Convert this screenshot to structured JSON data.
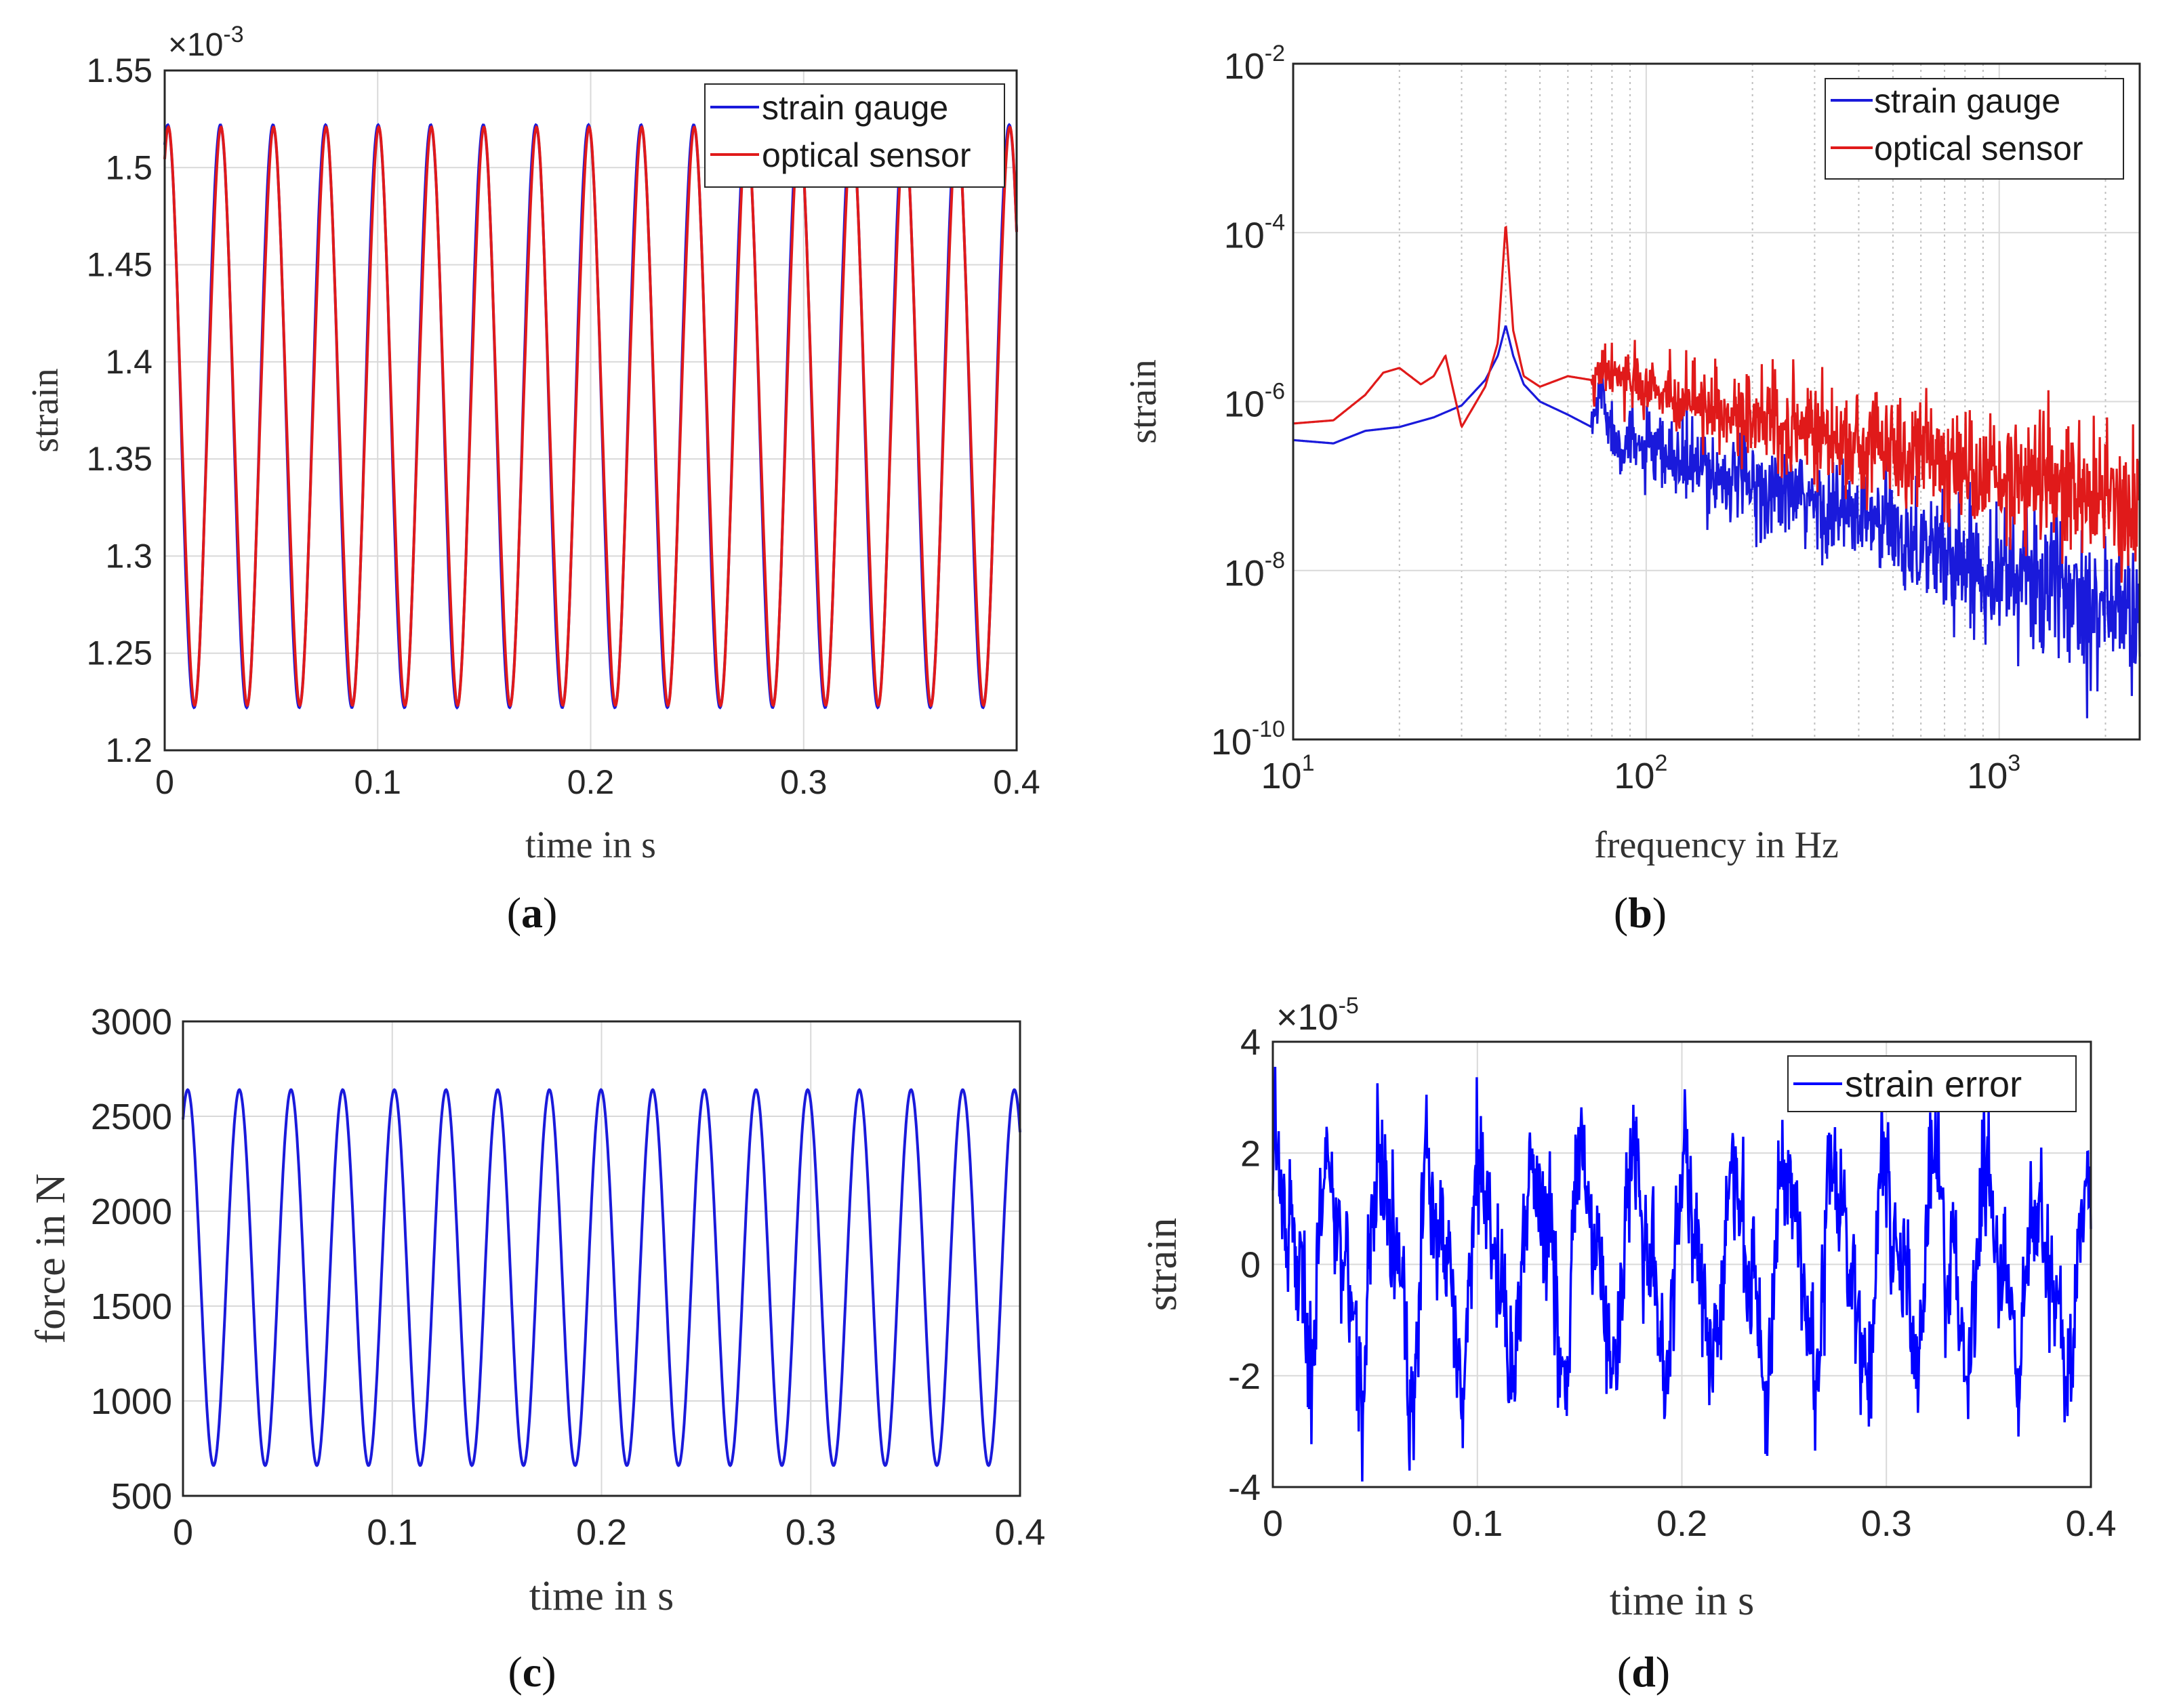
{
  "colors": {
    "blue": "#1a1adb",
    "red": "#e01a1a",
    "blue_d": "#0000ff",
    "grid": "#d9d9d9",
    "axis": "#262626"
  },
  "chart_data": [
    {
      "panel": "a",
      "type": "line",
      "xlabel": "time in s",
      "ylabel": "strain",
      "exponent_label": "×10",
      "exponent": "-3",
      "xlim": [
        0,
        0.4
      ],
      "ylim": [
        1.2,
        1.55
      ],
      "xticks": [
        0,
        0.1,
        0.2,
        0.3,
        0.4
      ],
      "xtick_labels": [
        "0",
        "0.1",
        "0.2",
        "0.3",
        "0.4"
      ],
      "yticks": [
        1.2,
        1.25,
        1.3,
        1.35,
        1.4,
        1.45,
        1.5,
        1.55
      ],
      "ytick_labels": [
        "1.2",
        "1.25",
        "1.3",
        "1.35",
        "1.4",
        "1.45",
        "1.5",
        "1.55"
      ],
      "grid": true,
      "legend_position": "top-right",
      "series": [
        {
          "name": "strain gauge",
          "color": "#1a1adb",
          "frequency_hz": 40.5,
          "mean": 1.372,
          "amplitude": 0.15,
          "phase_rad": 1.2
        },
        {
          "name": "optical sensor",
          "color": "#e01a1a",
          "frequency_hz": 40.5,
          "mean": 1.372,
          "amplitude": 0.145,
          "phase_rad": 1.15
        }
      ]
    },
    {
      "panel": "b",
      "type": "line",
      "xscale": "log",
      "yscale": "log",
      "xlabel": "frequency in Hz",
      "ylabel": "strain",
      "xlim": [
        10,
        2500
      ],
      "ylim_exponents": [
        -10,
        -2
      ],
      "xtick_labels": [
        {
          "base": "10",
          "exp": "1"
        },
        {
          "base": "10",
          "exp": "2"
        },
        {
          "base": "10",
          "exp": "3"
        }
      ],
      "ytick_labels": [
        {
          "base": "10",
          "exp": "-10"
        },
        {
          "base": "10",
          "exp": "-8"
        },
        {
          "base": "10",
          "exp": "-6"
        },
        {
          "base": "10",
          "exp": "-4"
        },
        {
          "base": "10",
          "exp": "-2"
        }
      ],
      "grid": true,
      "legend_position": "top-right",
      "series": [
        {
          "name": "strain gauge",
          "color": "#1a1adb",
          "points": [
            [
              10,
              3.5e-07
            ],
            [
              13,
              3.2e-07
            ],
            [
              16,
              4.5e-07
            ],
            [
              20,
              5e-07
            ],
            [
              25,
              6.5e-07
            ],
            [
              30,
              9e-07
            ],
            [
              35,
              1.8e-06
            ],
            [
              38,
              3.5e-06
            ],
            [
              40,
              8e-06
            ],
            [
              42,
              3.5e-06
            ],
            [
              45,
              1.6e-06
            ],
            [
              50,
              1e-06
            ],
            [
              60,
              7e-07
            ],
            [
              70,
              5e-07
            ],
            [
              75,
              1.5e-06
            ],
            [
              80,
              4e-07
            ],
            [
              100,
              2.5e-07
            ],
            [
              150,
              1.5e-07
            ],
            [
              200,
              1e-07
            ],
            [
              300,
              6e-08
            ],
            [
              500,
              3e-08
            ],
            [
              700,
              1.5e-08
            ],
            [
              1000,
              1e-08
            ],
            [
              1500,
              6e-09
            ],
            [
              2000,
              4e-09
            ],
            [
              2500,
              3e-09
            ]
          ]
        },
        {
          "name": "optical sensor",
          "color": "#e01a1a",
          "points": [
            [
              10,
              5.5e-07
            ],
            [
              13,
              6e-07
            ],
            [
              16,
              1.2e-06
            ],
            [
              18,
              2.2e-06
            ],
            [
              20,
              2.5e-06
            ],
            [
              23,
              1.6e-06
            ],
            [
              25,
              2e-06
            ],
            [
              27,
              3.5e-06
            ],
            [
              30,
              5e-07
            ],
            [
              35,
              1.5e-06
            ],
            [
              38,
              5e-06
            ],
            [
              40,
              0.00013
            ],
            [
              42,
              7e-06
            ],
            [
              45,
              2e-06
            ],
            [
              50,
              1.5e-06
            ],
            [
              60,
              2e-06
            ],
            [
              70,
              1.8e-06
            ],
            [
              80,
              2.5e-06
            ],
            [
              100,
              1.4e-06
            ],
            [
              150,
              9e-07
            ],
            [
              200,
              6e-07
            ],
            [
              300,
              4.5e-07
            ],
            [
              500,
              2.6e-07
            ],
            [
              700,
              1.8e-07
            ],
            [
              1000,
              1.3e-07
            ],
            [
              1500,
              9e-08
            ],
            [
              2000,
              8e-08
            ],
            [
              2500,
              7e-08
            ]
          ]
        }
      ]
    },
    {
      "panel": "c",
      "type": "line",
      "xlabel": "time in s",
      "ylabel": "force in N",
      "xlim": [
        0,
        0.4
      ],
      "ylim": [
        500,
        3000
      ],
      "xticks": [
        0,
        0.1,
        0.2,
        0.3,
        0.4
      ],
      "xtick_labels": [
        "0",
        "0.1",
        "0.2",
        "0.3",
        "0.4"
      ],
      "yticks": [
        500,
        1000,
        1500,
        2000,
        2500,
        3000
      ],
      "ytick_labels": [
        "500",
        "1000",
        "1500",
        "2000",
        "2500",
        "3000"
      ],
      "grid": true,
      "series": [
        {
          "name": "force",
          "color": "#1a1adb",
          "frequency_hz": 40.5,
          "mean": 1650,
          "amplitude": 990,
          "phase_rad": 1.0
        }
      ]
    },
    {
      "panel": "d",
      "type": "line",
      "xlabel": "time in s",
      "ylabel": "strain",
      "exponent_label": "×10",
      "exponent": "-5",
      "xlim": [
        0,
        0.4
      ],
      "ylim": [
        -4,
        4
      ],
      "xticks": [
        0,
        0.1,
        0.2,
        0.3,
        0.4
      ],
      "xtick_labels": [
        "0",
        "0.1",
        "0.2",
        "0.3",
        "0.4"
      ],
      "yticks": [
        -4,
        -2,
        0,
        2,
        4
      ],
      "ytick_labels": [
        "-4",
        "-2",
        "0",
        "2",
        "4"
      ],
      "grid": true,
      "legend_position": "top-right",
      "series": [
        {
          "name": "strain error",
          "color": "#0000ff",
          "mean": 0,
          "amplitude": 1.6,
          "noise_std": 1.0,
          "range": [
            -3.9,
            3.9
          ]
        }
      ]
    }
  ],
  "panel_labels": [
    "a",
    "b",
    "c",
    "d"
  ]
}
